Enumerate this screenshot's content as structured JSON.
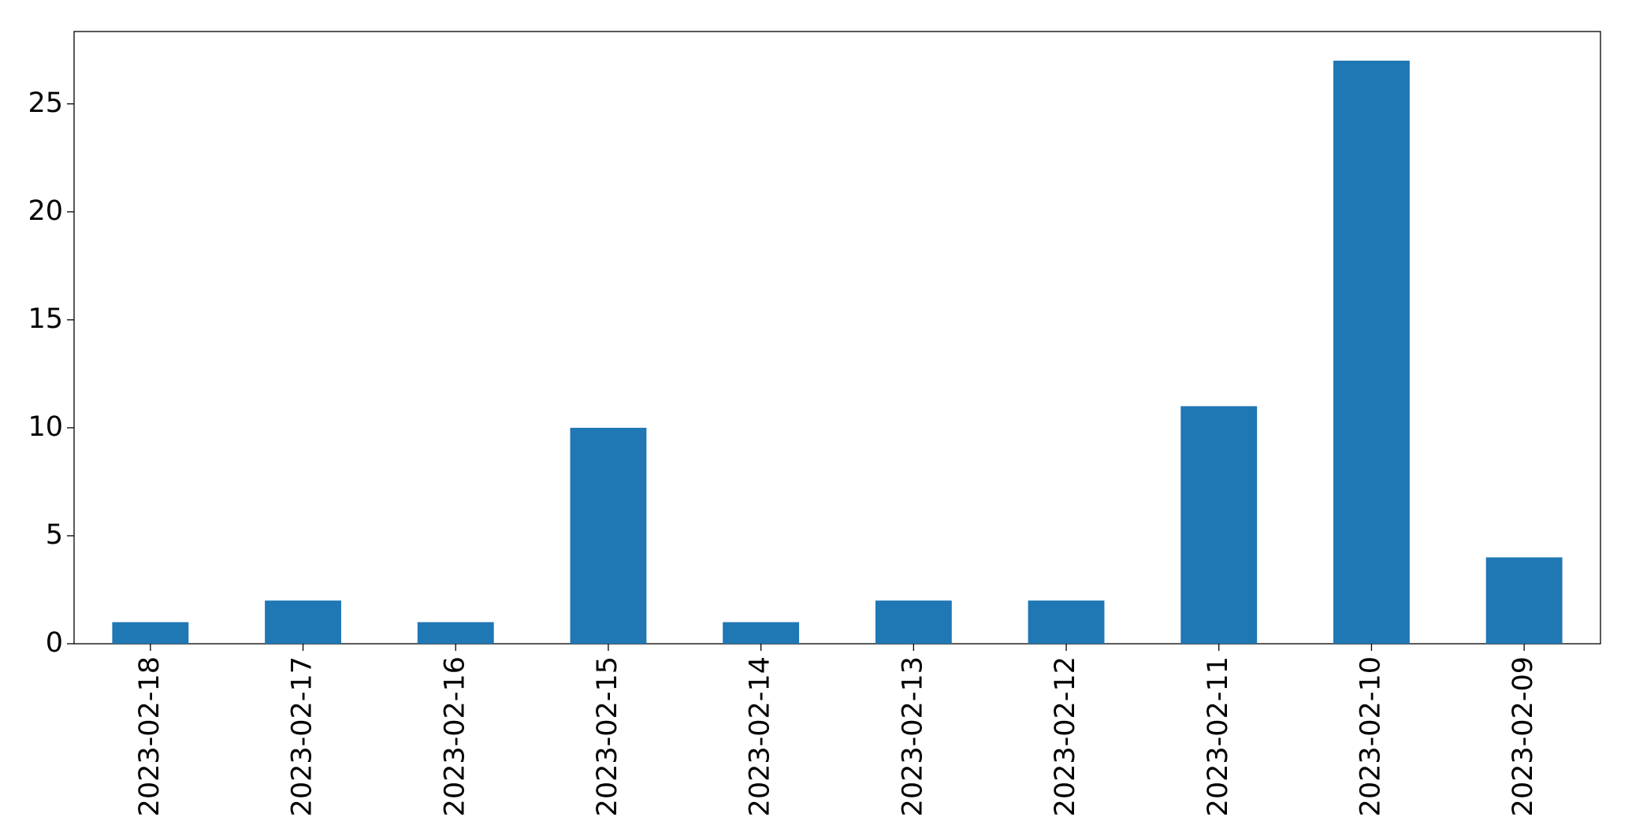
{
  "chart_data": {
    "type": "bar",
    "categories": [
      "2023-02-18",
      "2023-02-17",
      "2023-02-16",
      "2023-02-15",
      "2023-02-14",
      "2023-02-13",
      "2023-02-12",
      "2023-02-11",
      "2023-02-10",
      "2023-02-09"
    ],
    "values": [
      1,
      2,
      1,
      10,
      1,
      2,
      2,
      11,
      27,
      4
    ],
    "color": "#1f77b4",
    "ylim": [
      0,
      28.35
    ],
    "yticks": [
      0,
      5,
      10,
      15,
      20,
      25
    ],
    "grid": false
  }
}
